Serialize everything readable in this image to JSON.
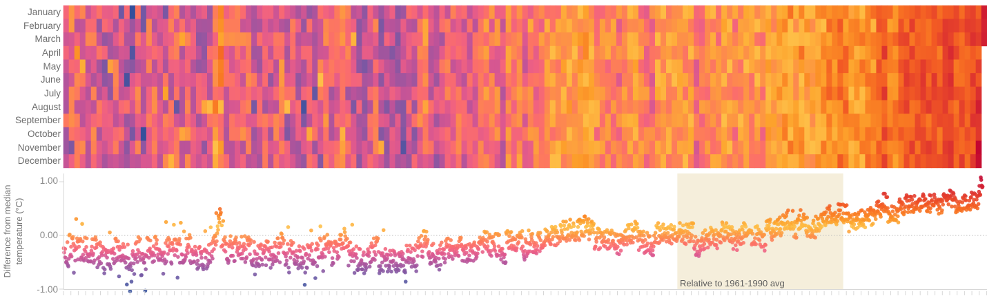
{
  "page": {
    "background": "#ffffff"
  },
  "axis_style": {
    "line_color": "#d7d7d7",
    "tick_label_color": "#8b8b8b",
    "month_label_color": "#6e6e6e",
    "axis_title_color": "#757575",
    "zero_line_color": "#bdbdbd"
  },
  "colormap": {
    "stops": [
      [
        -1.08,
        "#2e4e99"
      ],
      [
        -0.92,
        "#47539f"
      ],
      [
        -0.76,
        "#6e58a4"
      ],
      [
        -0.6,
        "#9756a0"
      ],
      [
        -0.47,
        "#bc5399"
      ],
      [
        -0.36,
        "#dc588f"
      ],
      [
        -0.27,
        "#f16280"
      ],
      [
        -0.19,
        "#fb6d6c"
      ],
      [
        -0.11,
        "#fd7b5b"
      ],
      [
        -0.04,
        "#fd8a4d"
      ],
      [
        0.03,
        "#fd9a3f"
      ],
      [
        0.1,
        "#feab3a"
      ],
      [
        0.17,
        "#febf47"
      ],
      [
        0.24,
        "#fda42d"
      ],
      [
        0.33,
        "#fb8c26"
      ],
      [
        0.44,
        "#f87623"
      ],
      [
        0.57,
        "#f25a24"
      ],
      [
        0.72,
        "#e43e2c"
      ],
      [
        0.86,
        "#d62732"
      ],
      [
        1.0,
        "#c81131"
      ],
      [
        1.13,
        "#c0002f"
      ]
    ]
  },
  "chart_data": [
    {
      "type": "heatmap",
      "name": "monthly-temperature-anomaly-heatmap",
      "rows": [
        "January",
        "February",
        "March",
        "April",
        "May",
        "June",
        "July",
        "August",
        "September",
        "October",
        "November",
        "December"
      ],
      "x_axis": {
        "start_year": 1850,
        "end_year": 2016,
        "last_year_months": 3,
        "tick_labels_visible": false
      },
      "annual_anomaly_baseline": [
        -0.37,
        -0.22,
        -0.22,
        -0.27,
        -0.25,
        -0.27,
        -0.36,
        -0.46,
        -0.47,
        -0.29,
        -0.35,
        -0.4,
        -0.52,
        -0.28,
        -0.5,
        -0.28,
        -0.26,
        -0.31,
        -0.28,
        -0.28,
        -0.27,
        -0.32,
        -0.23,
        -0.3,
        -0.38,
        -0.39,
        -0.39,
        -0.08,
        0.03,
        -0.24,
        -0.24,
        -0.2,
        -0.22,
        -0.24,
        -0.36,
        -0.36,
        -0.32,
        -0.39,
        -0.27,
        -0.17,
        -0.39,
        -0.32,
        -0.41,
        -0.42,
        -0.38,
        -0.36,
        -0.19,
        -0.18,
        -0.34,
        -0.23,
        -0.15,
        -0.21,
        -0.32,
        -0.42,
        -0.5,
        -0.36,
        -0.26,
        -0.44,
        -0.47,
        -0.48,
        -0.46,
        -0.48,
        -0.4,
        -0.38,
        -0.18,
        -0.12,
        -0.35,
        -0.42,
        -0.33,
        -0.24,
        -0.25,
        -0.2,
        -0.29,
        -0.26,
        -0.27,
        -0.2,
        -0.09,
        -0.18,
        -0.18,
        -0.33,
        -0.11,
        -0.08,
        -0.12,
        -0.26,
        -0.11,
        -0.15,
        -0.12,
        -0.02,
        0.0,
        -0.01,
        0.08,
        0.12,
        0.09,
        0.1,
        0.19,
        0.09,
        -0.06,
        -0.05,
        -0.05,
        -0.09,
        -0.17,
        -0.01,
        0.02,
        0.08,
        -0.12,
        -0.13,
        -0.19,
        0.05,
        0.06,
        0.03,
        -0.02,
        0.06,
        0.03,
        0.05,
        -0.2,
        -0.1,
        -0.05,
        -0.02,
        -0.07,
        0.08,
        0.03,
        -0.09,
        0.01,
        0.16,
        -0.07,
        -0.01,
        -0.11,
        0.18,
        0.07,
        0.16,
        0.26,
        0.29,
        0.13,
        0.31,
        0.16,
        0.12,
        0.18,
        0.32,
        0.38,
        0.28,
        0.43,
        0.4,
        0.22,
        0.26,
        0.31,
        0.44,
        0.32,
        0.51,
        0.61,
        0.39,
        0.36,
        0.53,
        0.59,
        0.59,
        0.54,
        0.65,
        0.6,
        0.61,
        0.51,
        0.62,
        0.68,
        0.56,
        0.6,
        0.63,
        0.67,
        0.76,
        1.0
      ],
      "monthly_noise": {
        "amplitude_start": 0.26,
        "amplitude_end": 0.16,
        "seed": 20,
        "cold_outlier_rate": 0.035,
        "warm_outlier_rate": 0.035,
        "outlier_shift": 0.32,
        "outlier_year_limit_index": 65
      }
    },
    {
      "type": "scatter",
      "name": "difference-from-median-scatter",
      "ylabel": "Difference from median temperature (°C)",
      "yticks": [
        {
          "label": "1.00",
          "value": 1.0
        },
        {
          "label": "0.00",
          "value": 0.0
        },
        {
          "label": "-1.00",
          "value": -1.0
        }
      ],
      "ylim": [
        -1.05,
        1.14
      ],
      "zero_line": {
        "style": "dotted",
        "color": "#bdbdbd"
      },
      "reference_band": {
        "label": "Relative to 1961-1990 avg",
        "start_year": 1961,
        "end_year": 1990,
        "fill": "#f5eedb",
        "label_color": "#5d5d5d"
      },
      "point_radius": 2.8,
      "shares_x_with_heatmap": true
    }
  ]
}
